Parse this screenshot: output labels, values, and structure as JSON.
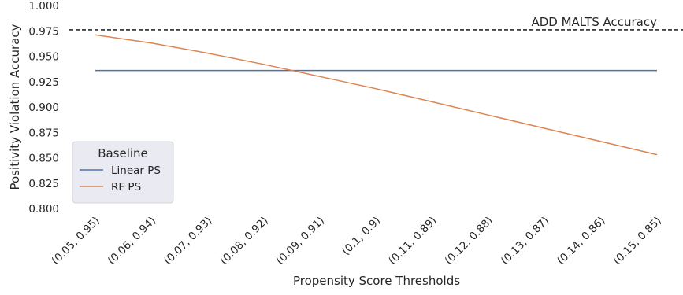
{
  "chart_data": {
    "type": "line",
    "xlabel": "Propensity Score Thresholds",
    "ylabel": "Positivity Violation Accuracy",
    "categories": [
      "(0.05, 0.95)",
      "(0.06, 0.94)",
      "(0.07, 0.93)",
      "(0.08, 0.92)",
      "(0.09, 0.91)",
      "(0.1, 0.9)",
      "(0.11, 0.89)",
      "(0.12, 0.88)",
      "(0.13, 0.87)",
      "(0.14, 0.86)",
      "(0.15, 0.85)"
    ],
    "ylim": [
      0.8,
      1.0
    ],
    "yticks": [
      "0.800",
      "0.825",
      "0.850",
      "0.875",
      "0.900",
      "0.925",
      "0.950",
      "0.975",
      "1.000"
    ],
    "series": [
      {
        "name": "Linear PS",
        "color": "#4c72b0",
        "values": [
          0.936,
          0.936,
          0.936,
          0.936,
          0.936,
          0.936,
          0.936,
          0.936,
          0.936,
          0.936,
          0.936
        ]
      },
      {
        "name": "RF PS",
        "color": "#dd8452",
        "values": [
          0.971,
          0.963,
          0.953,
          0.942,
          0.93,
          0.918,
          0.905,
          0.892,
          0.879,
          0.866,
          0.853
        ]
      }
    ],
    "reference_line": {
      "label": "ADD MALTS Accuracy",
      "value": 0.976,
      "style": "dashed",
      "color": "#000000"
    },
    "legend": {
      "title": "Baseline",
      "placement": "lower-left"
    },
    "grid": false
  }
}
